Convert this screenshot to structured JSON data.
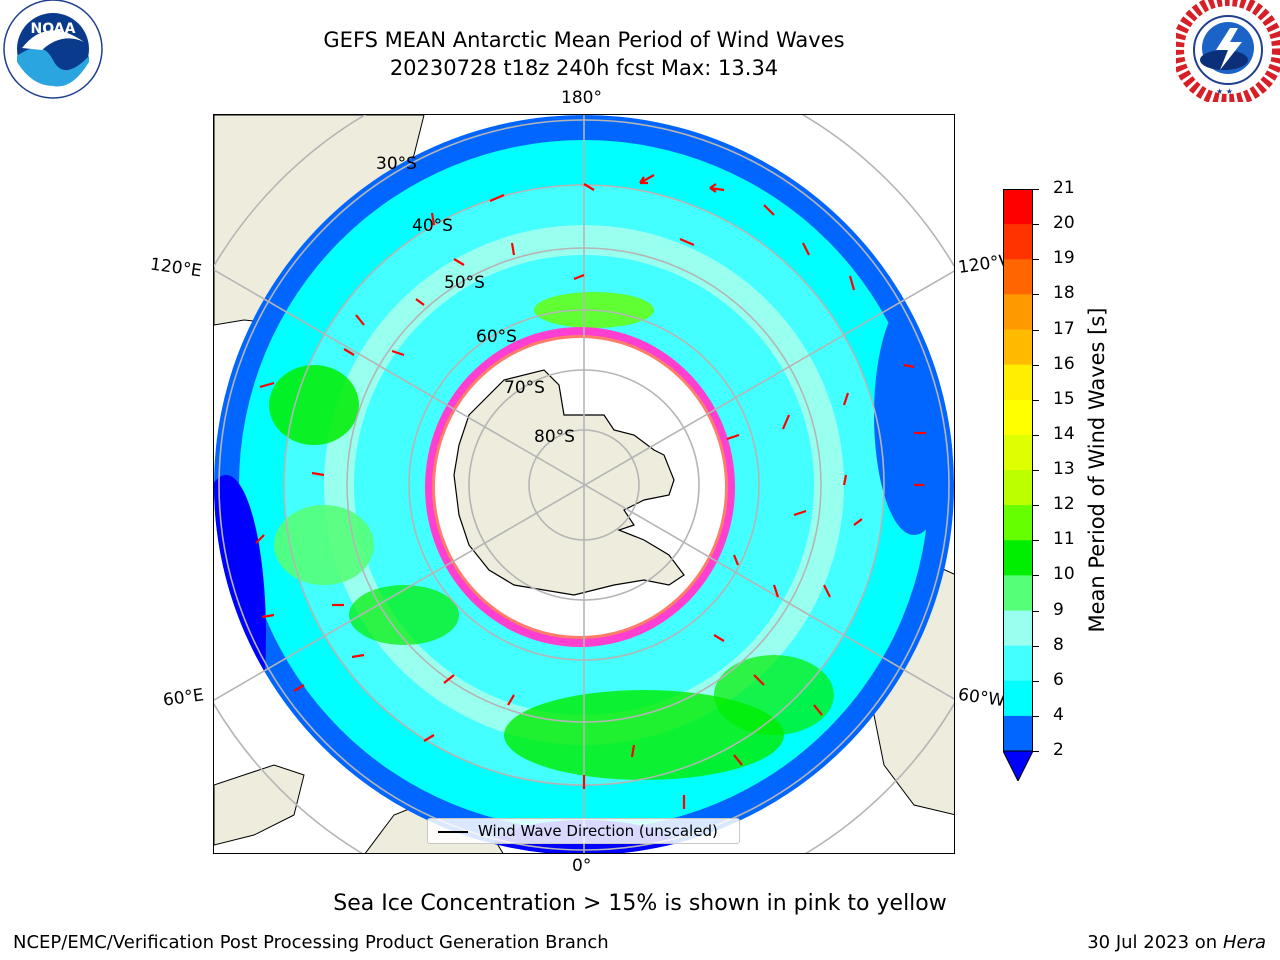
{
  "title": {
    "line1": "GEFS MEAN Antarctic Mean Period of Wind Waves",
    "line2": "20230728 t18z 240h fcst   Max: 13.34"
  },
  "logos": {
    "left": {
      "name": "noaa-logo",
      "text": "NOAA",
      "ring_text": "NATIONAL OCEANIC AND ATMOSPHERIC ADMINISTRATION · U.S. DEPARTMENT OF COMMERCE"
    },
    "right": {
      "name": "nws-logo",
      "ring_text": "NATIONAL WEATHER SERVICE"
    }
  },
  "map": {
    "projection": "south polar stereographic",
    "longitude_labels": {
      "top": "180°",
      "bottom": "0°",
      "upper_left": "120°E",
      "upper_right": "120°W",
      "lower_left": "60°E",
      "lower_right": "60°W"
    },
    "latitude_labels": [
      "30°S",
      "40°S",
      "50°S",
      "60°S",
      "70°S",
      "80°S"
    ],
    "legend_text": "Wind Wave Direction (unscaled)",
    "colors": {
      "land": "#eeecdc",
      "ice_edge": "#ff3fd2",
      "arrow": "#ff0000",
      "grid": "#b5b5b5"
    }
  },
  "colorbar": {
    "label": "Mean Period of Wind Waves [s]",
    "ticks": [
      "2",
      "4",
      "6",
      "8",
      "9",
      "10",
      "11",
      "12",
      "13",
      "14",
      "15",
      "16",
      "17",
      "18",
      "19",
      "20",
      "21"
    ],
    "bins": [
      {
        "range": "<2",
        "color": "#0000ff"
      },
      {
        "range": "2-4",
        "color": "#0066ff"
      },
      {
        "range": "4-6",
        "color": "#00ffff"
      },
      {
        "range": "6-8",
        "color": "#44ffff"
      },
      {
        "range": "8-9",
        "color": "#99ffee"
      },
      {
        "range": "9-10",
        "color": "#55ff77"
      },
      {
        "range": "10-11",
        "color": "#00ee00"
      },
      {
        "range": "11-12",
        "color": "#66ff00"
      },
      {
        "range": "12-13",
        "color": "#bbff00"
      },
      {
        "range": "13-14",
        "color": "#ddff00"
      },
      {
        "range": "14-15",
        "color": "#ffff00"
      },
      {
        "range": "15-16",
        "color": "#ffee00"
      },
      {
        "range": "16-17",
        "color": "#ffbb00"
      },
      {
        "range": "17-18",
        "color": "#ff9900"
      },
      {
        "range": "18-19",
        "color": "#ff6600"
      },
      {
        "range": "19-20",
        "color": "#ff3300"
      },
      {
        "range": "20-21",
        "color": "#ff0000"
      }
    ]
  },
  "footer": {
    "note": "Sea Ice Concentration > 15% is shown in pink to yellow",
    "left": "NCEP/EMC/Verification Post Processing Product Generation Branch",
    "right_date": "30 Jul 2023 on ",
    "right_machine": "Hera"
  }
}
